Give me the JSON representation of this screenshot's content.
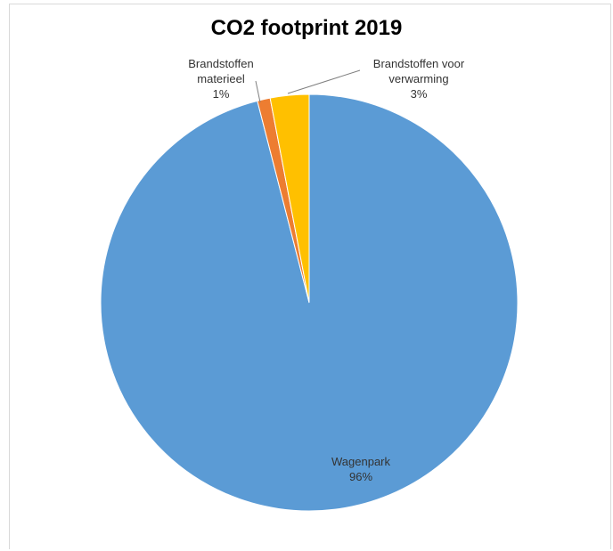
{
  "chart_data": {
    "type": "pie",
    "title": "CO2 footprint 2019",
    "legend": "none",
    "slices": [
      {
        "name": "Wagenpark",
        "value": 96,
        "percent_label": "96%",
        "label_lines": [
          "Wagenpark"
        ],
        "color": "#5b9bd5"
      },
      {
        "name": "Brandstoffen materieel",
        "value": 1,
        "percent_label": "1%",
        "label_lines": [
          "Brandstoffen",
          "materieel"
        ],
        "color": "#ed7d31"
      },
      {
        "name": "Brandstoffen voor verwarming",
        "value": 3,
        "percent_label": "3%",
        "label_lines": [
          "Brandstoffen voor",
          "verwarming"
        ],
        "color": "#ffc000"
      }
    ]
  }
}
